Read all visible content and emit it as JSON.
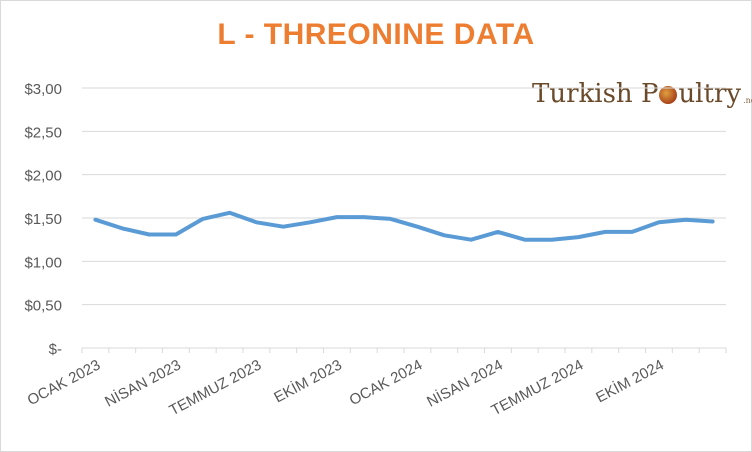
{
  "chart_data": {
    "type": "line",
    "title": "L - THREONINE DATA",
    "title_color": "#ed7d31",
    "line_color": "#5b9bd5",
    "grid": true,
    "legend": "none",
    "ylim": [
      0,
      3
    ],
    "y_ticks": [
      {
        "value": 3.0,
        "label": "$3,00"
      },
      {
        "value": 2.5,
        "label": "$2,50"
      },
      {
        "value": 2.0,
        "label": "$2,00"
      },
      {
        "value": 1.5,
        "label": "$1,50"
      },
      {
        "value": 1.0,
        "label": "$1,00"
      },
      {
        "value": 0.5,
        "label": "$0,50"
      },
      {
        "value": 0.0,
        "label": "$-"
      }
    ],
    "x_tick_labels": [
      {
        "index": 0,
        "label": "OCAK 2023"
      },
      {
        "index": 3,
        "label": "NİSAN 2023"
      },
      {
        "index": 6,
        "label": "TEMMUZ 2023"
      },
      {
        "index": 9,
        "label": "EKİM 2023"
      },
      {
        "index": 12,
        "label": "OCAK 2024"
      },
      {
        "index": 15,
        "label": "NİSAN 2024"
      },
      {
        "index": 18,
        "label": "TEMMUZ 2024"
      },
      {
        "index": 21,
        "label": "EKİM 2024"
      }
    ],
    "categories": [
      "2023-01",
      "2023-02",
      "2023-03",
      "2023-04",
      "2023-05",
      "2023-06",
      "2023-07",
      "2023-08",
      "2023-09",
      "2023-10",
      "2023-11",
      "2023-12",
      "2024-01",
      "2024-02",
      "2024-03",
      "2024-04",
      "2024-05",
      "2024-06",
      "2024-07",
      "2024-08",
      "2024-09",
      "2024-10",
      "2024-11",
      "2024-12"
    ],
    "values": [
      1.48,
      1.38,
      1.31,
      1.31,
      1.49,
      1.56,
      1.45,
      1.4,
      1.45,
      1.51,
      1.51,
      1.49,
      1.4,
      1.3,
      1.25,
      1.34,
      1.25,
      1.25,
      1.28,
      1.34,
      1.34,
      1.45,
      1.48,
      1.46
    ]
  },
  "logo": {
    "text_a": "Turkish P",
    "text_b": "ultry",
    "text_c": ".net"
  }
}
